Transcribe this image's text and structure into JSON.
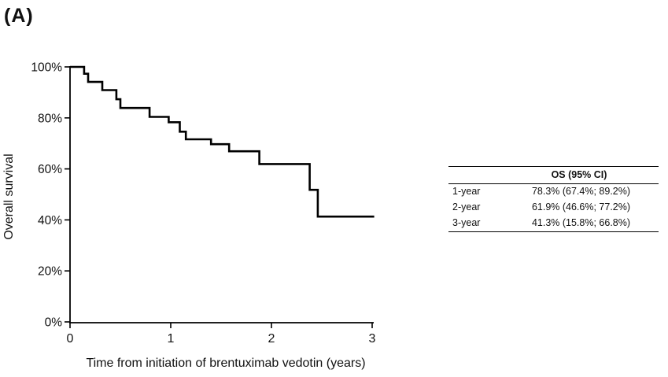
{
  "panel_label": "(A)",
  "colors": {
    "curve": "#000000",
    "axis": "#000000",
    "text": "#111111",
    "background": "#ffffff"
  },
  "chart_data": {
    "type": "line",
    "subtype": "kaplan-meier-step",
    "title": "",
    "xlabel": "Time from initiation of brentuximab vedotin (years)",
    "ylabel": "Overall survival",
    "xlim": [
      0,
      3
    ],
    "ylim": [
      0,
      100
    ],
    "grid": false,
    "legend": false,
    "x_ticks": [
      {
        "value": 0,
        "label": "0"
      },
      {
        "value": 1,
        "label": "1"
      },
      {
        "value": 2,
        "label": "2"
      },
      {
        "value": 3,
        "label": "3"
      }
    ],
    "y_ticks": [
      {
        "pct": 0,
        "label": "0%"
      },
      {
        "pct": 20,
        "label": "20%"
      },
      {
        "pct": 40,
        "label": "40%"
      },
      {
        "pct": 60,
        "label": "60%"
      },
      {
        "pct": 80,
        "label": "80%"
      },
      {
        "pct": 100,
        "label": "100%"
      }
    ],
    "steps": [
      {
        "t": 0.0,
        "s": 100.0
      },
      {
        "t": 0.14,
        "s": 97.3
      },
      {
        "t": 0.18,
        "s": 94.1
      },
      {
        "t": 0.32,
        "s": 90.9
      },
      {
        "t": 0.46,
        "s": 87.3
      },
      {
        "t": 0.5,
        "s": 83.9
      },
      {
        "t": 0.79,
        "s": 80.4
      },
      {
        "t": 0.98,
        "s": 78.3
      },
      {
        "t": 1.09,
        "s": 74.6
      },
      {
        "t": 1.15,
        "s": 71.6
      },
      {
        "t": 1.4,
        "s": 69.7
      },
      {
        "t": 1.58,
        "s": 66.9
      },
      {
        "t": 1.88,
        "s": 61.9
      },
      {
        "t": 2.38,
        "s": 51.8
      },
      {
        "t": 2.46,
        "s": 41.3
      }
    ],
    "curve_end_t": 3.02
  },
  "table": {
    "header": "OS (95% CI)",
    "rows": [
      {
        "label": "1-year",
        "value": "78.3% (67.4%; 89.2%)"
      },
      {
        "label": "2-year",
        "value": "61.9% (46.6%; 77.2%)"
      },
      {
        "label": "3-year",
        "value": "41.3% (15.8%; 66.8%)"
      }
    ]
  }
}
